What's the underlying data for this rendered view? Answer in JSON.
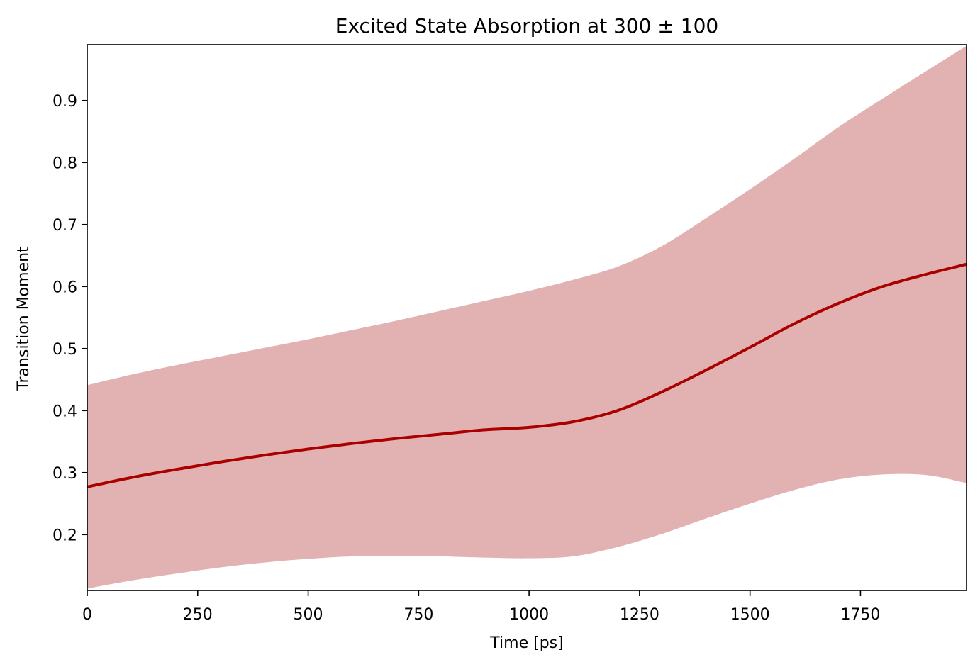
{
  "chart_data": {
    "type": "line",
    "title": "Excited State Absorption at 300 ± 100",
    "xlabel": "Time [ps]",
    "ylabel": "Transition Moment",
    "xlim": [
      0,
      1990
    ],
    "ylim": [
      0.11,
      0.99
    ],
    "xticks": [
      0,
      250,
      500,
      750,
      1000,
      1250,
      1500,
      1750
    ],
    "yticks": [
      0.2,
      0.3,
      0.4,
      0.5,
      0.6,
      0.7,
      0.8,
      0.9
    ],
    "grid": false,
    "legend": "none",
    "line_color": "#aa0000",
    "band_color": "#e2b1b1",
    "series": [
      {
        "x": [
          0,
          100,
          200,
          300,
          400,
          500,
          600,
          700,
          800,
          900,
          1000,
          1100,
          1200,
          1300,
          1400,
          1500,
          1600,
          1700,
          1800,
          1900,
          1990
        ],
        "mean": [
          0.277,
          0.292,
          0.305,
          0.317,
          0.328,
          0.338,
          0.347,
          0.355,
          0.362,
          0.369,
          0.373,
          0.382,
          0.4,
          0.43,
          0.465,
          0.502,
          0.54,
          0.573,
          0.6,
          0.62,
          0.636
        ],
        "lower": [
          0.113,
          0.126,
          0.137,
          0.147,
          0.155,
          0.161,
          0.165,
          0.166,
          0.165,
          0.163,
          0.162,
          0.165,
          0.18,
          0.201,
          0.226,
          0.25,
          0.272,
          0.289,
          0.297,
          0.296,
          0.283
        ],
        "upper": [
          0.441,
          0.458,
          0.473,
          0.487,
          0.501,
          0.515,
          0.53,
          0.545,
          0.561,
          0.577,
          0.593,
          0.611,
          0.632,
          0.665,
          0.71,
          0.757,
          0.806,
          0.857,
          0.903,
          0.948,
          0.988
        ]
      }
    ]
  }
}
